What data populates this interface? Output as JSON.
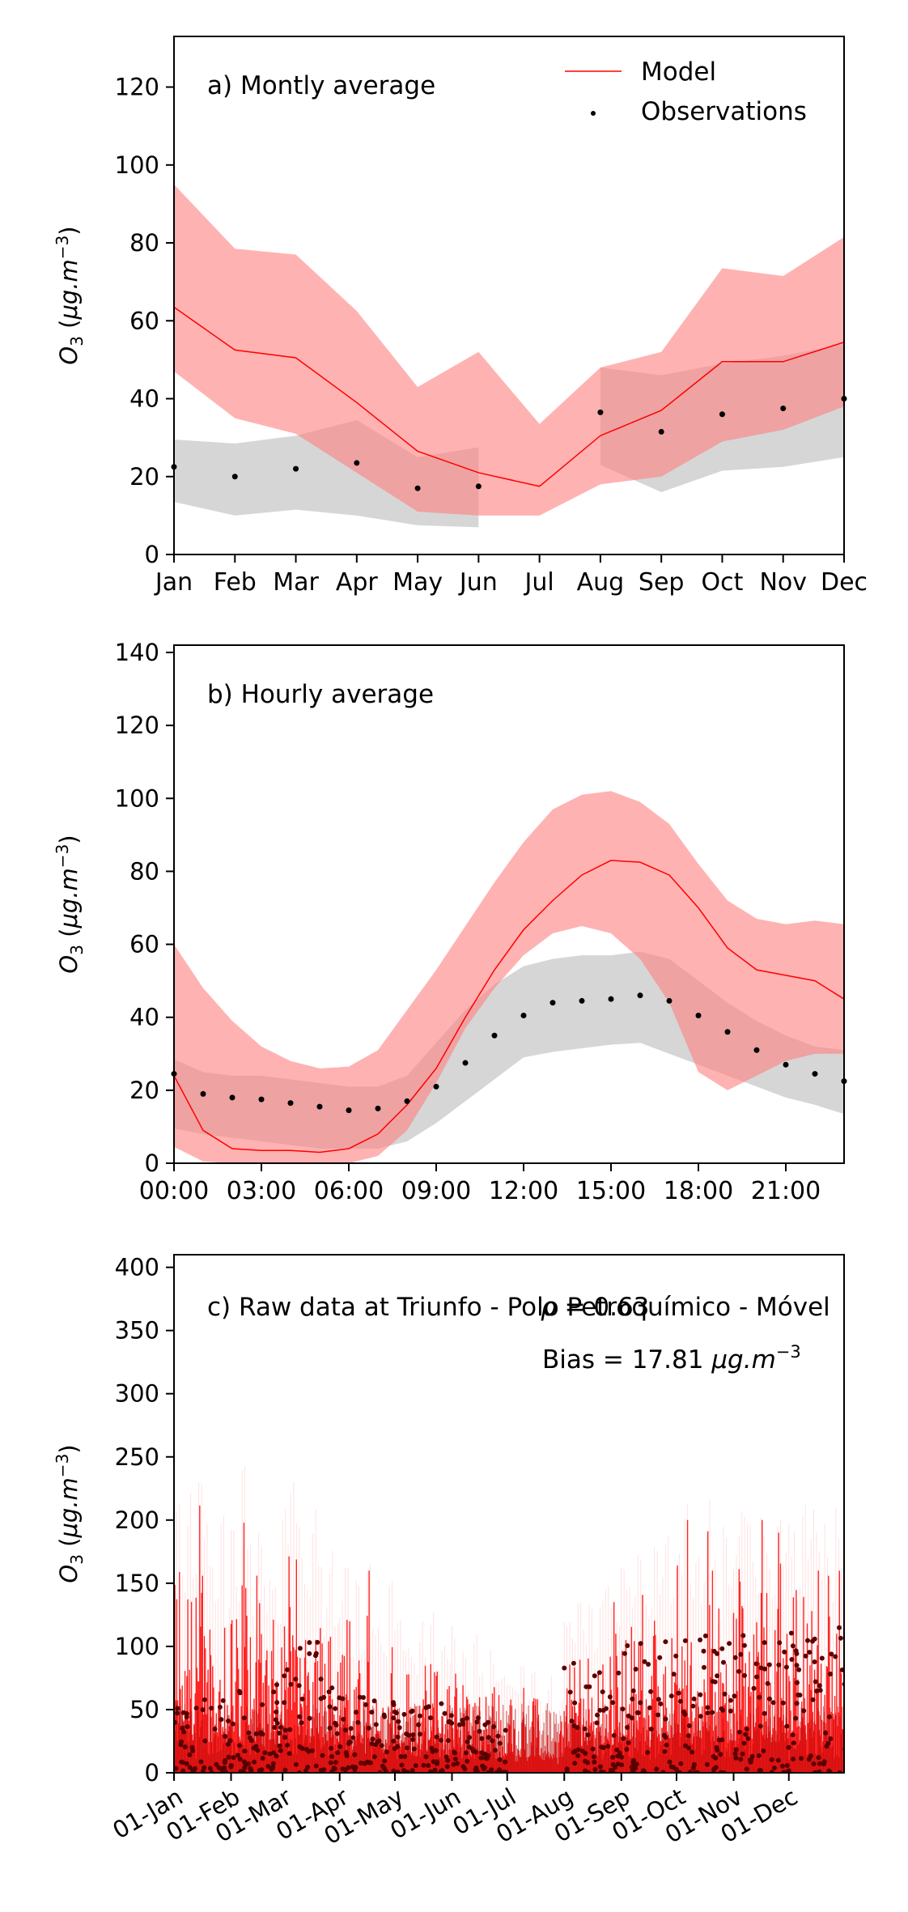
{
  "colors": {
    "model_line": "#ff0000",
    "model_band": "#ff7f7f",
    "obs_band": "#b5b5b5",
    "obs_points": "#000000",
    "raw_obs_points": "#5a0000"
  },
  "legend": {
    "model": "Model",
    "observations": "Observations",
    "placement": "top-right"
  },
  "chart_data": [
    {
      "type": "line",
      "title": "a) Montly average",
      "ylabel": "O3 (µg.m-3)",
      "categories": [
        "Jan",
        "Feb",
        "Mar",
        "Apr",
        "May",
        "Jun",
        "Jul",
        "Aug",
        "Sep",
        "Oct",
        "Nov",
        "Dec"
      ],
      "ylim": [
        0,
        133
      ],
      "yticks": [
        0,
        20,
        40,
        60,
        80,
        100,
        120
      ],
      "series": [
        {
          "name": "Model",
          "values": [
            63.5,
            52.5,
            50.5,
            39,
            26.5,
            21,
            17.5,
            30.5,
            37,
            49.5,
            49.5,
            54.5
          ]
        },
        {
          "name": "Observations",
          "values": [
            22.5,
            20,
            22,
            23.5,
            17,
            17.5,
            null,
            36.5,
            31.5,
            36,
            37.5,
            40
          ]
        }
      ],
      "model_band": {
        "lower": [
          47,
          35,
          31,
          21,
          11,
          10,
          10,
          18,
          20,
          29,
          32,
          38
        ],
        "upper": [
          95,
          78.5,
          77,
          62.5,
          43,
          52,
          33.5,
          48,
          52,
          73.5,
          71.5,
          81.5
        ]
      },
      "obs_band_segments": [
        {
          "x": [
            0,
            1,
            2,
            3,
            4,
            5
          ],
          "lower": [
            13.5,
            10,
            11.5,
            10,
            7.5,
            7
          ],
          "upper": [
            29.5,
            28.5,
            30.5,
            34.5,
            25,
            27.5
          ]
        },
        {
          "x": [
            7,
            8,
            9,
            10,
            11
          ],
          "lower": [
            23,
            16,
            21.5,
            22.5,
            25
          ],
          "upper": [
            48,
            46,
            49,
            51,
            54
          ]
        }
      ]
    },
    {
      "type": "line",
      "title": "b) Hourly average",
      "ylabel": "O3 (µg.m-3)",
      "x": [
        0,
        1,
        2,
        3,
        4,
        5,
        6,
        7,
        8,
        9,
        10,
        11,
        12,
        13,
        14,
        15,
        16,
        17,
        18,
        19,
        20,
        21,
        22,
        23
      ],
      "xticks": [
        "00:00",
        "03:00",
        "06:00",
        "09:00",
        "12:00",
        "15:00",
        "18:00",
        "21:00"
      ],
      "ylim": [
        0,
        142
      ],
      "yticks": [
        0,
        20,
        40,
        60,
        80,
        100,
        120,
        140
      ],
      "series": [
        {
          "name": "Model",
          "values": [
            24,
            9,
            4,
            3.5,
            3.5,
            3,
            4,
            8,
            16,
            26,
            40,
            53,
            64,
            72,
            79,
            83,
            82.5,
            79,
            70,
            59,
            53,
            51.5,
            50,
            45
          ]
        },
        {
          "name": "Observations",
          "values": [
            24.5,
            19,
            18,
            17.5,
            16.5,
            15.5,
            14.5,
            15,
            17,
            21,
            27.5,
            35,
            40.5,
            44,
            44.5,
            45,
            46,
            44.5,
            40.5,
            36,
            31,
            27,
            24.5,
            22.5
          ]
        }
      ],
      "model_band": {
        "lower": [
          4.5,
          0.5,
          0,
          0,
          0,
          0,
          0,
          2,
          9,
          22,
          37,
          48,
          57,
          63,
          65,
          63,
          56,
          44,
          25,
          20,
          24,
          28,
          30,
          30
        ],
        "upper": [
          60,
          48,
          39,
          32,
          28,
          26,
          26.5,
          31,
          42,
          53,
          65,
          77,
          88,
          97,
          101,
          102,
          99,
          93,
          82,
          72,
          67,
          65.5,
          66.5,
          65.5
        ]
      },
      "obs_band": {
        "lower": [
          9.5,
          8,
          7,
          6,
          5,
          4,
          4,
          4,
          6,
          11,
          17,
          23,
          29,
          30.5,
          31.5,
          32.5,
          33,
          30,
          27,
          24,
          21,
          18,
          16,
          13.5
        ],
        "upper": [
          28.5,
          25,
          24,
          24,
          23,
          22,
          21,
          21,
          24,
          33,
          42,
          49,
          54,
          56,
          57,
          57,
          58,
          56,
          50,
          44,
          39,
          35,
          32,
          31
        ]
      }
    },
    {
      "type": "line",
      "title": "c) Raw data at Triunfo - Polo Petroquímico - Móvel",
      "annotations": [
        "ρ = 0.63",
        "Bias = 17.81 µg.m-3"
      ],
      "ylabel": "O3 (µg.m-3)",
      "xticks": [
        "01-Jan",
        "01-Feb",
        "01-Mar",
        "01-Apr",
        "01-May",
        "01-Jun",
        "01-Jul",
        "01-Aug",
        "01-Sep",
        "01-Oct",
        "01-Nov",
        "01-Dec"
      ],
      "xtick_day_of_year": [
        0,
        31,
        59,
        90,
        120,
        151,
        181,
        212,
        243,
        273,
        304,
        334
      ],
      "xlim": [
        0,
        364
      ],
      "ylim": [
        0,
        410
      ],
      "yticks": [
        0,
        50,
        100,
        150,
        200,
        250,
        300,
        350,
        400
      ],
      "series": [
        {
          "name": "Model",
          "description_values": "hourly model series (daily envelope shown)"
        },
        {
          "name": "Observations"
        }
      ],
      "model_daily_max_by_month": [
        {
          "month": "Jan",
          "peaks": [
            205,
            150,
            210,
            170,
            230,
            190,
            160,
            140,
            200,
            120
          ]
        },
        {
          "month": "Feb",
          "peaks": [
            185,
            150,
            258,
            170,
            120,
            190,
            140,
            160,
            150,
            120
          ]
        },
        {
          "month": "Mar",
          "peaks": [
            200,
            230,
            180,
            160,
            140,
            190,
            150,
            120,
            170,
            110
          ]
        },
        {
          "month": "Apr",
          "peaks": [
            130,
            180,
            100,
            150,
            90,
            160,
            120,
            110,
            100,
            140
          ]
        },
        {
          "month": "May",
          "peaks": [
            115,
            95,
            100,
            80,
            110,
            90,
            120,
            80,
            100,
            85
          ]
        },
        {
          "month": "Jun",
          "peaks": [
            110,
            70,
            95,
            60,
            100,
            80,
            60,
            90,
            70,
            70
          ]
        },
        {
          "month": "Jul",
          "peaks": [
            70,
            60,
            80,
            55,
            75,
            60,
            50,
            70,
            40,
            55
          ]
        },
        {
          "month": "Aug",
          "peaks": [
            120,
            100,
            130,
            110,
            140,
            90,
            125,
            150,
            135,
            110
          ]
        },
        {
          "month": "Sep",
          "peaks": [
            150,
            160,
            130,
            170,
            140,
            120,
            165,
            150,
            175,
            140
          ]
        },
        {
          "month": "Oct",
          "peaks": [
            170,
            200,
            150,
            180,
            140,
            205,
            160,
            130,
            190,
            150
          ]
        },
        {
          "month": "Nov",
          "peaks": [
            160,
            190,
            210,
            180,
            150,
            200,
            160,
            140,
            190,
            170
          ]
        },
        {
          "month": "Dec",
          "peaks": [
            180,
            150,
            200,
            170,
            190,
            160,
            180,
            150,
            195,
            170
          ]
        }
      ],
      "obs_max_by_month": [
        60,
        70,
        110,
        60,
        55,
        45,
        30,
        90,
        105,
        110,
        110,
        115
      ]
    }
  ]
}
